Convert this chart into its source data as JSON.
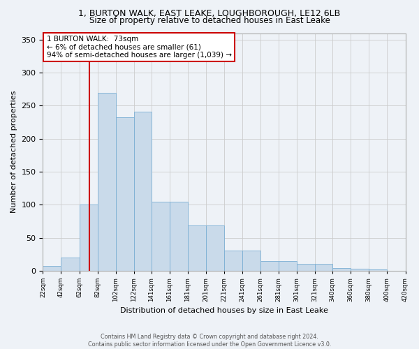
{
  "title": "1, BURTON WALK, EAST LEAKE, LOUGHBOROUGH, LE12 6LB",
  "subtitle": "Size of property relative to detached houses in East Leake",
  "xlabel": "Distribution of detached houses by size in East Leake",
  "ylabel": "Number of detached properties",
  "bar_color": "#c9daea",
  "bar_edge_color": "#7bafd4",
  "vline_x": 73,
  "vline_color": "#cc0000",
  "annotation_text": "1 BURTON WALK:  73sqm\n← 6% of detached houses are smaller (61)\n94% of semi-detached houses are larger (1,039) →",
  "annotation_box_facecolor": "#ffffff",
  "annotation_box_edgecolor": "#cc0000",
  "bins": [
    22,
    42,
    62,
    82,
    102,
    122,
    141,
    161,
    181,
    201,
    221,
    241,
    261,
    281,
    301,
    321,
    340,
    360,
    380,
    400,
    420
  ],
  "bin_labels": [
    "22sqm",
    "42sqm",
    "62sqm",
    "82sqm",
    "102sqm",
    "122sqm",
    "141sqm",
    "161sqm",
    "181sqm",
    "201sqm",
    "221sqm",
    "241sqm",
    "261sqm",
    "281sqm",
    "301sqm",
    "321sqm",
    "340sqm",
    "360sqm",
    "380sqm",
    "400sqm",
    "420sqm"
  ],
  "bar_heights": [
    7,
    20,
    100,
    270,
    233,
    241,
    105,
    105,
    68,
    68,
    30,
    30,
    15,
    15,
    10,
    10,
    4,
    3,
    2,
    0,
    2
  ],
  "ylim": [
    0,
    360
  ],
  "yticks": [
    0,
    50,
    100,
    150,
    200,
    250,
    300,
    350
  ],
  "footer_text": "Contains HM Land Registry data © Crown copyright and database right 2024.\nContains public sector information licensed under the Open Government Licence v3.0.",
  "bg_color": "#eef2f7",
  "plot_bg_color": "#eef2f7",
  "title_fontsize": 9,
  "subtitle_fontsize": 8.5,
  "xlabel_fontsize": 8,
  "ylabel_fontsize": 8
}
